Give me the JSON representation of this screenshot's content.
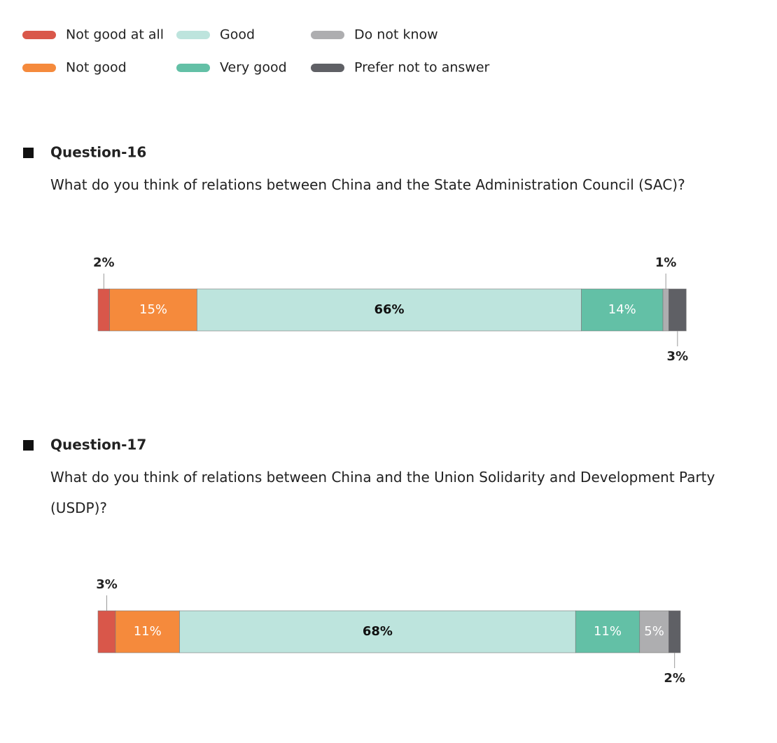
{
  "chart_data": {
    "type": "stacked_bar",
    "categories": [
      "Question-16",
      "Question-17"
    ],
    "subtitles": [
      "What do you think of relations between China and the State Administration Council (SAC)?",
      "What do you think of relations between China and the Union Solidarity and Development Party (USDP)?"
    ],
    "series": [
      {
        "name": "Not good at all",
        "color": "#d9574a",
        "values": [
          2,
          3
        ],
        "value_labels": [
          "2%",
          "3%"
        ]
      },
      {
        "name": "Not good",
        "color": "#f58a3c",
        "values": [
          15,
          11
        ],
        "value_labels": [
          "15%",
          "11%"
        ]
      },
      {
        "name": "Good",
        "color": "#bde4dd",
        "values": [
          66,
          68
        ],
        "value_labels": [
          "66%",
          "68%"
        ]
      },
      {
        "name": "Very good",
        "color": "#63c0a6",
        "values": [
          14,
          11
        ],
        "value_labels": [
          "14%",
          "11%"
        ]
      },
      {
        "name": "Do not know",
        "color": "#aeaeb0",
        "values": [
          1,
          5
        ],
        "value_labels": [
          "1%",
          "5%"
        ]
      },
      {
        "name": "Prefer not to answer",
        "color": "#5f6065",
        "values": [
          3,
          2
        ],
        "value_labels": [
          "3%",
          "2%"
        ]
      }
    ]
  }
}
